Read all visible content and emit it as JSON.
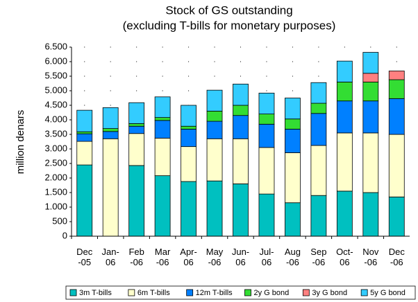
{
  "chart_data": {
    "type": "stacked_bar",
    "title": "Stock of GS outstanding",
    "subtitle": "(excluding T-bills for monetary purposes)",
    "ylabel": "million denars",
    "categories": [
      "Dec\n-05",
      "Jan-\n06",
      "Feb\n-06",
      "Mar\n-06",
      "Apr-\n06",
      "May\n-06",
      "Jun-\n06",
      "Jul-\n06",
      "Aug\n-06",
      "Sep\n-06",
      "Oct-\n06",
      "Nov\n-06",
      "Dec\n-06"
    ],
    "series": [
      {
        "name": "3m T-bills",
        "color": "#00c0c0",
        "values": [
          2450,
          0,
          2430,
          2080,
          1880,
          1900,
          1800,
          1450,
          1150,
          1400,
          1550,
          1500,
          1350
        ]
      },
      {
        "name": "6m T-bills",
        "color": "#ffffcc",
        "values": [
          810,
          3350,
          1100,
          1290,
          1200,
          1450,
          1550,
          1600,
          1720,
          1720,
          2000,
          2050,
          2150
        ]
      },
      {
        "name": "12m T-bills",
        "color": "#0080ff",
        "values": [
          260,
          250,
          250,
          610,
          600,
          600,
          800,
          800,
          810,
          1100,
          1100,
          1100,
          1230
        ]
      },
      {
        "name": "2y G bond",
        "color": "#33dd33",
        "values": [
          70,
          100,
          90,
          100,
          100,
          350,
          350,
          350,
          350,
          350,
          650,
          650,
          650
        ]
      },
      {
        "name": "3y G bond",
        "color": "#ff8080",
        "values": [
          0,
          0,
          0,
          0,
          0,
          0,
          0,
          0,
          0,
          0,
          0,
          300,
          300
        ]
      },
      {
        "name": "5y G bond",
        "color": "#33ccff",
        "values": [
          740,
          720,
          720,
          710,
          720,
          720,
          730,
          720,
          720,
          710,
          720,
          720,
          0
        ]
      }
    ],
    "ylim": [
      0,
      6500
    ],
    "yticks": [
      0,
      500,
      {
        "value": 1000,
        "label": "1.000"
      },
      {
        "value": 1500,
        "label": "1.500"
      },
      {
        "value": 2000,
        "label": "2.000"
      },
      {
        "value": 2500,
        "label": "2.500"
      },
      {
        "value": 3000,
        "label": "3.000"
      },
      {
        "value": 3500,
        "label": "3.500"
      },
      {
        "value": 4000,
        "label": "4.000"
      },
      {
        "value": 4500,
        "label": "4.500"
      },
      {
        "value": 5000,
        "label": "5.000"
      },
      {
        "value": 5500,
        "label": "5.500"
      },
      {
        "value": 6000,
        "label": "6.000"
      },
      {
        "value": 6500,
        "label": "6.500"
      }
    ],
    "grid": true,
    "legend": "bottom"
  }
}
